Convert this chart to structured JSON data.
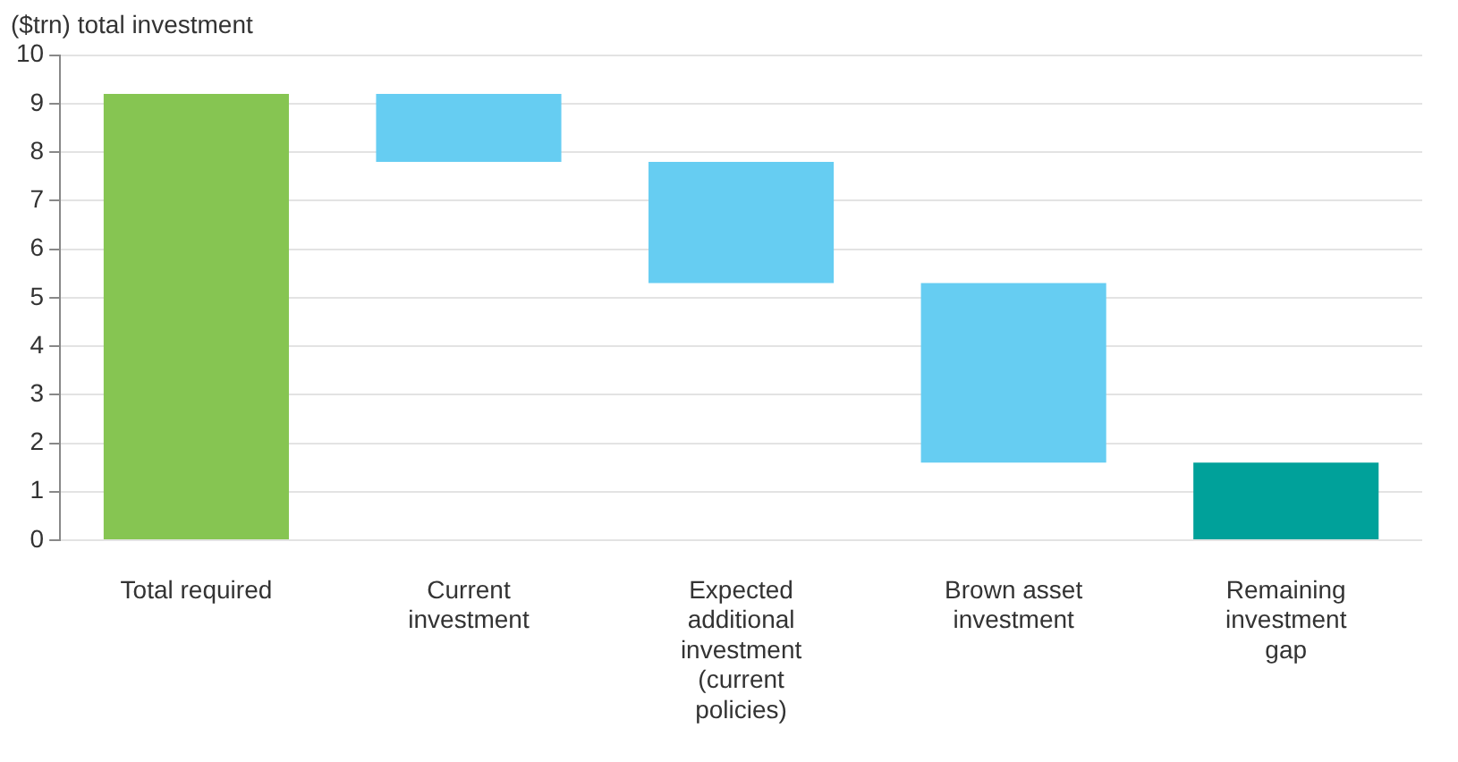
{
  "chart_data": {
    "type": "bar",
    "ylabel": "($trn) total investment",
    "categories": [
      "Total required",
      "Current investment",
      "Expected additional investment (current policies)",
      "Brown asset investment",
      "Remaining investment gap"
    ],
    "values": [
      9.2,
      1.4,
      2.5,
      3.7,
      1.6
    ],
    "base": [
      0,
      7.8,
      5.3,
      1.6,
      0
    ],
    "colors": [
      "#86c552",
      "#66cdf2",
      "#66cdf2",
      "#66cdf2",
      "#00a19a"
    ],
    "ylim": [
      0,
      10
    ],
    "yticks": [
      0,
      1,
      2,
      3,
      4,
      5,
      6,
      7,
      8,
      9,
      10
    ],
    "grid": "y",
    "legend": false
  }
}
